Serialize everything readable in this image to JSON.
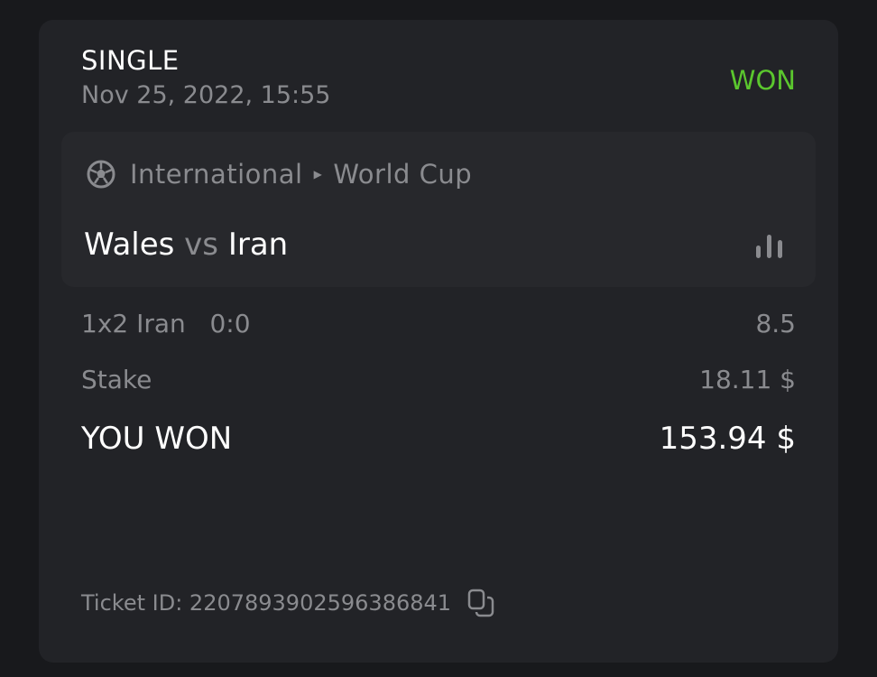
{
  "bet": {
    "type": "SINGLE",
    "date": "Nov 25, 2022, 15:55",
    "status": "WON",
    "status_color": "#5bc72e"
  },
  "event": {
    "sport_icon": "soccer-ball-icon",
    "category": "International",
    "league": "World Cup",
    "home": "Wales",
    "vs": "vs",
    "away": "Iran",
    "stats_icon": "bar-chart-icon"
  },
  "selection": {
    "market": "1x2 Iran",
    "score": "0:0",
    "odds": "8.5"
  },
  "stake": {
    "label": "Stake",
    "value": "18.11 $"
  },
  "win": {
    "label": "YOU WON",
    "value": "153.94 $"
  },
  "ticket": {
    "label": "Ticket ID:",
    "id": "2207893902596386841",
    "copy_icon": "copy-icon"
  }
}
